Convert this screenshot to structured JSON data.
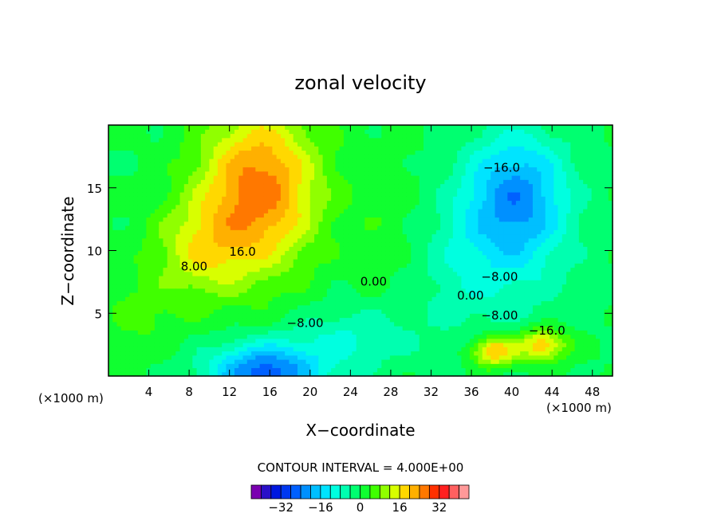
{
  "chart_data": {
    "type": "heatmap",
    "title": "zonal velocity",
    "xlabel": "X−coordinate",
    "ylabel": "Z−coordinate",
    "x_unit_left": "(×1000 m)",
    "x_unit_right": "(×1000 m)",
    "xlim": [
      0,
      50
    ],
    "ylim": [
      0,
      20
    ],
    "x_ticks": [
      4,
      8,
      12,
      16,
      20,
      24,
      28,
      32,
      36,
      40,
      44,
      48
    ],
    "y_ticks": [
      5,
      10,
      15
    ],
    "contour_interval_label": "CONTOUR INTERVAL = 4.000E+00",
    "contour_interval": 4,
    "colorbar": {
      "levels": [
        -40,
        -36,
        -32,
        -28,
        -24,
        -20,
        -16,
        -12,
        -8,
        -4,
        0,
        4,
        8,
        12,
        16,
        20,
        24,
        28,
        32,
        36,
        40
      ],
      "colors": [
        "#7a00b0",
        "#2a10c8",
        "#0018e0",
        "#0038f0",
        "#0060ff",
        "#0090ff",
        "#00bfff",
        "#00e4ff",
        "#00ffe0",
        "#00ffb0",
        "#00ff70",
        "#10ff30",
        "#40ff00",
        "#90ff00",
        "#d8ff00",
        "#ffd800",
        "#ffb000",
        "#ff7800",
        "#ff3000",
        "#ff2020",
        "#ff6060",
        "#ff9999"
      ],
      "tick_labels": [
        "−32",
        "−16",
        "0",
        "16",
        "32"
      ],
      "tick_values": [
        -32,
        -16,
        0,
        16,
        32
      ]
    },
    "field_features": [
      {
        "kind": "max",
        "x": 15,
        "z": 14.5,
        "value": 30
      },
      {
        "kind": "min",
        "x": 40.5,
        "z": 14,
        "value": -20
      },
      {
        "kind": "min",
        "x": 15.5,
        "z": 0.5,
        "value": -25
      },
      {
        "kind": "max",
        "x": 38,
        "z": 2,
        "value": 26
      },
      {
        "kind": "max",
        "x": 43,
        "z": 2.3,
        "value": 24
      }
    ],
    "contour_labels": [
      {
        "text": "16.0",
        "x": 13.3,
        "z": 9.6
      },
      {
        "text": "8.00",
        "x": 8.5,
        "z": 8.4
      },
      {
        "text": "0.00",
        "x": 26.3,
        "z": 7.2
      },
      {
        "text": "0.00",
        "x": 35.9,
        "z": 6.1
      },
      {
        "text": "−16.0",
        "x": 39,
        "z": 16.3
      },
      {
        "text": "−8.00",
        "x": 38.8,
        "z": 7.6
      },
      {
        "text": "−8.00",
        "x": 19.5,
        "z": 3.9
      },
      {
        "text": "−8.00",
        "x": 38.8,
        "z": 4.5
      },
      {
        "text": "−16.0",
        "x": 43.5,
        "z": 3.3
      }
    ],
    "grid": false,
    "legend": "bottom"
  }
}
